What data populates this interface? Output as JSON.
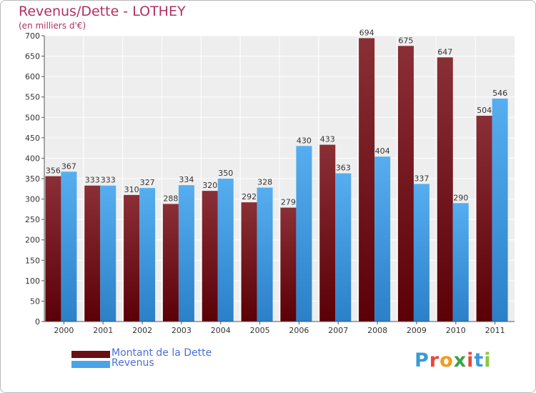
{
  "header": {
    "title": "Revenus/Dette - LOTHEY",
    "subtitle": "(en milliers d'€)"
  },
  "legend": {
    "items": [
      {
        "label": "Montant de la Dette",
        "color": "#6b0f14"
      },
      {
        "label": "Revenus",
        "color": "#4aa3e6"
      }
    ]
  },
  "logo": {
    "letters": [
      {
        "ch": "P",
        "color": "#3a9ad9"
      },
      {
        "ch": "r",
        "color": "#e8483b"
      },
      {
        "ch": "o",
        "color": "#f29a1c"
      },
      {
        "ch": "x",
        "color": "#3aa34a"
      },
      {
        "ch": "i",
        "color": "#e8483b"
      },
      {
        "ch": "t",
        "color": "#3a9ad9"
      },
      {
        "ch": "i",
        "color": "#8dc63f"
      }
    ]
  },
  "chart_data": {
    "type": "bar",
    "title": "Revenus/Dette - LOTHEY",
    "subtitle": "(en milliers d'€)",
    "categories": [
      "2000",
      "2001",
      "2002",
      "2003",
      "2004",
      "2005",
      "2006",
      "2007",
      "2008",
      "2009",
      "2010",
      "2011"
    ],
    "series": [
      {
        "name": "Montant de la Dette",
        "values": [
          356,
          333,
          310,
          288,
          320,
          292,
          279,
          433,
          694,
          675,
          647,
          504
        ],
        "color": "#6b0f14"
      },
      {
        "name": "Revenus",
        "values": [
          367,
          333,
          327,
          334,
          350,
          328,
          430,
          363,
          404,
          337,
          290,
          546
        ],
        "color": "#4aa3e6"
      }
    ],
    "ylim": [
      0,
      700
    ],
    "yticks": [
      0,
      50,
      100,
      150,
      200,
      250,
      300,
      350,
      400,
      450,
      500,
      550,
      600,
      650,
      700
    ],
    "grid": true,
    "legend_position": "bottom-left"
  }
}
